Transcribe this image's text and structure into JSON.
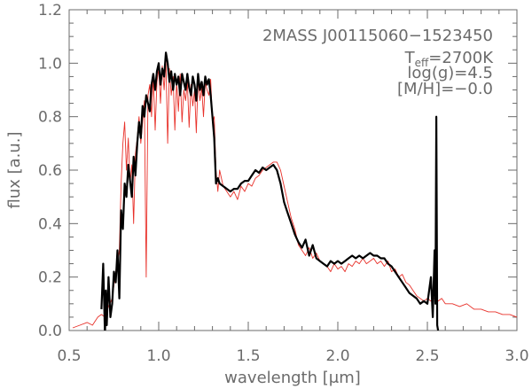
{
  "chart_data": {
    "type": "line",
    "xlabel_text": "wavelength [",
    "xlabel_unit": "μm",
    "xlabel_close": "]",
    "ylabel": "flux [a.u.]",
    "xlim": [
      0.5,
      3.0
    ],
    "ylim": [
      0.0,
      1.2
    ],
    "x_ticks": [
      "0.5",
      "1.0",
      "1.5",
      "2.0",
      "2.5",
      "3.0"
    ],
    "y_ticks": [
      "0.0",
      "0.2",
      "0.4",
      "0.6",
      "0.8",
      "1.0",
      "1.2"
    ],
    "annotation": {
      "name": "2MASS J00115060−1523450",
      "teff_prefix": "T",
      "teff_sub": "eff",
      "teff_value": "=2700K",
      "logg": "log(g)=4.5",
      "metallicity": "[M/H]=−0.0"
    },
    "series": [
      {
        "color": "#e8312a",
        "x": [
          0.52,
          0.56,
          0.6,
          0.63,
          0.66,
          0.68,
          0.7,
          0.72,
          0.74,
          0.76,
          0.78,
          0.79,
          0.8,
          0.81,
          0.82,
          0.83,
          0.84,
          0.85,
          0.86,
          0.87,
          0.88,
          0.89,
          0.9,
          0.91,
          0.92,
          0.93,
          0.94,
          0.95,
          0.96,
          0.97,
          0.98,
          0.99,
          1.0,
          1.01,
          1.02,
          1.03,
          1.04,
          1.05,
          1.06,
          1.07,
          1.08,
          1.09,
          1.1,
          1.11,
          1.12,
          1.13,
          1.14,
          1.15,
          1.16,
          1.17,
          1.18,
          1.19,
          1.2,
          1.21,
          1.22,
          1.23,
          1.24,
          1.25,
          1.26,
          1.27,
          1.28,
          1.29,
          1.3,
          1.31,
          1.32,
          1.33,
          1.34,
          1.36,
          1.38,
          1.4,
          1.42,
          1.44,
          1.46,
          1.48,
          1.5,
          1.52,
          1.54,
          1.56,
          1.58,
          1.6,
          1.62,
          1.64,
          1.66,
          1.68,
          1.7,
          1.72,
          1.74,
          1.76,
          1.78,
          1.8,
          1.82,
          1.84,
          1.86,
          1.88,
          1.9,
          1.92,
          1.94,
          1.96,
          1.98,
          2.0,
          2.02,
          2.04,
          2.06,
          2.08,
          2.1,
          2.12,
          2.14,
          2.16,
          2.18,
          2.2,
          2.22,
          2.24,
          2.26,
          2.28,
          2.3,
          2.32,
          2.34,
          2.36,
          2.38,
          2.4,
          2.42,
          2.44,
          2.46,
          2.48,
          2.5,
          2.52,
          2.54,
          2.56,
          2.58,
          2.6,
          2.64,
          2.68,
          2.72,
          2.76,
          2.8,
          2.84,
          2.88,
          2.92,
          2.96,
          3.0
        ],
        "y": [
          0.01,
          0.02,
          0.03,
          0.02,
          0.05,
          0.06,
          0.05,
          0.09,
          0.12,
          0.22,
          0.3,
          0.55,
          0.7,
          0.78,
          0.6,
          0.72,
          0.55,
          0.62,
          0.4,
          0.66,
          0.72,
          0.8,
          0.7,
          0.78,
          0.86,
          0.2,
          0.88,
          0.92,
          0.8,
          0.95,
          0.75,
          0.93,
          0.98,
          0.85,
          0.99,
          0.9,
          1.01,
          0.7,
          0.98,
          0.88,
          0.95,
          0.75,
          0.93,
          0.82,
          0.96,
          0.78,
          0.9,
          0.86,
          0.93,
          0.76,
          0.92,
          0.84,
          0.9,
          0.74,
          0.94,
          0.86,
          0.91,
          0.8,
          0.93,
          0.9,
          0.88,
          0.94,
          0.78,
          0.8,
          0.6,
          0.52,
          0.6,
          0.54,
          0.52,
          0.5,
          0.52,
          0.49,
          0.54,
          0.52,
          0.55,
          0.54,
          0.57,
          0.58,
          0.6,
          0.61,
          0.62,
          0.63,
          0.63,
          0.6,
          0.54,
          0.48,
          0.42,
          0.38,
          0.32,
          0.3,
          0.28,
          0.31,
          0.27,
          0.29,
          0.26,
          0.25,
          0.24,
          0.22,
          0.25,
          0.23,
          0.24,
          0.22,
          0.25,
          0.24,
          0.26,
          0.25,
          0.27,
          0.25,
          0.26,
          0.27,
          0.25,
          0.26,
          0.24,
          0.26,
          0.22,
          0.23,
          0.2,
          0.21,
          0.18,
          0.17,
          0.15,
          0.13,
          0.12,
          0.11,
          0.12,
          0.11,
          0.12,
          0.11,
          0.12,
          0.1,
          0.1,
          0.09,
          0.1,
          0.08,
          0.08,
          0.07,
          0.07,
          0.06,
          0.06,
          0.05
        ]
      },
      {
        "color": "#000000",
        "x": [
          0.68,
          0.69,
          0.7,
          0.705,
          0.71,
          0.72,
          0.73,
          0.74,
          0.75,
          0.76,
          0.77,
          0.78,
          0.79,
          0.8,
          0.81,
          0.82,
          0.83,
          0.84,
          0.85,
          0.86,
          0.87,
          0.88,
          0.89,
          0.9,
          0.91,
          0.92,
          0.93,
          0.94,
          0.95,
          0.96,
          0.97,
          0.98,
          0.99,
          1.0,
          1.01,
          1.02,
          1.03,
          1.04,
          1.05,
          1.06,
          1.07,
          1.08,
          1.09,
          1.1,
          1.11,
          1.12,
          1.13,
          1.14,
          1.15,
          1.16,
          1.17,
          1.18,
          1.19,
          1.2,
          1.21,
          1.22,
          1.23,
          1.24,
          1.25,
          1.26,
          1.27,
          1.28,
          1.29,
          1.3,
          1.31,
          1.32,
          1.33,
          1.34,
          1.36,
          1.38,
          1.4,
          1.42,
          1.44,
          1.46,
          1.48,
          1.5,
          1.52,
          1.54,
          1.56,
          1.58,
          1.6,
          1.62,
          1.64,
          1.66,
          1.68,
          1.7,
          1.72,
          1.74,
          1.76,
          1.78,
          1.8,
          1.82,
          1.84,
          1.86,
          1.88,
          1.9,
          1.92,
          1.94,
          1.96,
          1.98,
          2.0,
          2.02,
          2.04,
          2.06,
          2.08,
          2.1,
          2.12,
          2.14,
          2.16,
          2.18,
          2.2,
          2.22,
          2.24,
          2.26,
          2.28,
          2.3,
          2.32,
          2.34,
          2.36,
          2.38,
          2.4,
          2.42,
          2.44,
          2.46,
          2.48,
          2.5,
          2.52,
          2.53,
          2.54,
          2.545,
          2.55,
          2.555,
          2.56
        ],
        "y": [
          0.08,
          0.25,
          -0.02,
          0.15,
          0.02,
          0.2,
          0.05,
          0.1,
          0.22,
          0.18,
          0.3,
          0.12,
          0.45,
          0.38,
          0.55,
          0.5,
          0.62,
          0.56,
          0.5,
          0.65,
          0.58,
          0.7,
          0.78,
          0.72,
          0.84,
          0.8,
          0.88,
          0.85,
          0.82,
          0.92,
          0.96,
          0.9,
          0.97,
          1.0,
          0.92,
          0.98,
          0.95,
          1.04,
          1.0,
          0.93,
          0.97,
          0.9,
          0.96,
          0.92,
          0.95,
          0.88,
          0.96,
          0.93,
          0.9,
          0.96,
          0.91,
          0.88,
          0.95,
          0.92,
          0.86,
          0.96,
          0.9,
          0.93,
          0.88,
          0.95,
          0.92,
          0.94,
          0.88,
          0.8,
          0.72,
          0.55,
          0.57,
          0.55,
          0.54,
          0.53,
          0.52,
          0.53,
          0.53,
          0.55,
          0.56,
          0.56,
          0.58,
          0.6,
          0.59,
          0.61,
          0.6,
          0.61,
          0.62,
          0.6,
          0.55,
          0.48,
          0.44,
          0.4,
          0.36,
          0.33,
          0.31,
          0.34,
          0.28,
          0.32,
          0.27,
          0.26,
          0.25,
          0.24,
          0.26,
          0.25,
          0.26,
          0.25,
          0.26,
          0.27,
          0.28,
          0.27,
          0.28,
          0.27,
          0.28,
          0.29,
          0.28,
          0.28,
          0.27,
          0.27,
          0.25,
          0.24,
          0.22,
          0.2,
          0.18,
          0.16,
          0.14,
          0.13,
          0.12,
          0.1,
          0.11,
          0.1,
          0.2,
          0.05,
          0.3,
          0.1,
          0.8,
          0.02,
          0.0
        ]
      }
    ]
  }
}
